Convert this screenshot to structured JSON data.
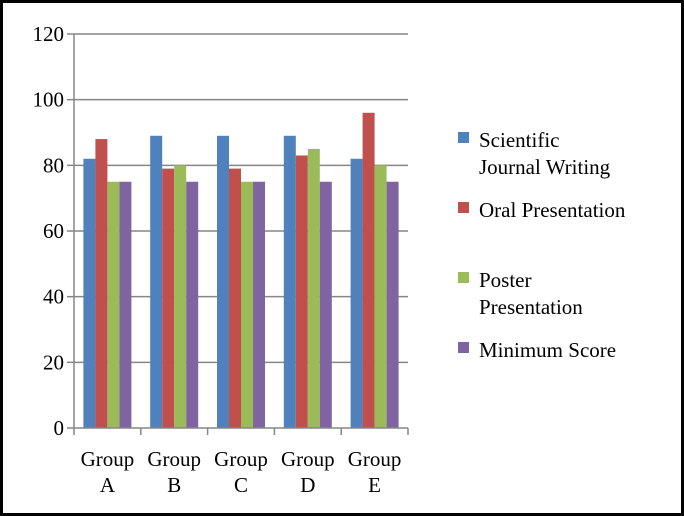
{
  "chart_data": {
    "type": "bar",
    "title": "",
    "xlabel": "",
    "ylabel": "",
    "ylim": [
      0,
      120
    ],
    "yticks": [
      0,
      20,
      40,
      60,
      80,
      100,
      120
    ],
    "grid": true,
    "legend_position": "right",
    "categories": [
      [
        "Group",
        "A"
      ],
      [
        "Group",
        "B"
      ],
      [
        "Group",
        "C"
      ],
      [
        "Group",
        "D"
      ],
      [
        "Group",
        "E"
      ]
    ],
    "series": [
      {
        "name": [
          "Scientific",
          "Journal Writing"
        ],
        "color": "#4f81bd",
        "values": [
          82,
          89,
          89,
          89,
          82
        ]
      },
      {
        "name": [
          "Oral Presentation"
        ],
        "color": "#c0504d",
        "values": [
          88,
          79,
          79,
          83,
          96
        ]
      },
      {
        "name": [
          "Poster",
          "Presentation"
        ],
        "color": "#9bbb59",
        "values": [
          75,
          80,
          75,
          85,
          80
        ]
      },
      {
        "name": [
          "Minimum Score"
        ],
        "color": "#8064a2",
        "values": [
          75,
          75,
          75,
          75,
          75
        ]
      }
    ]
  }
}
